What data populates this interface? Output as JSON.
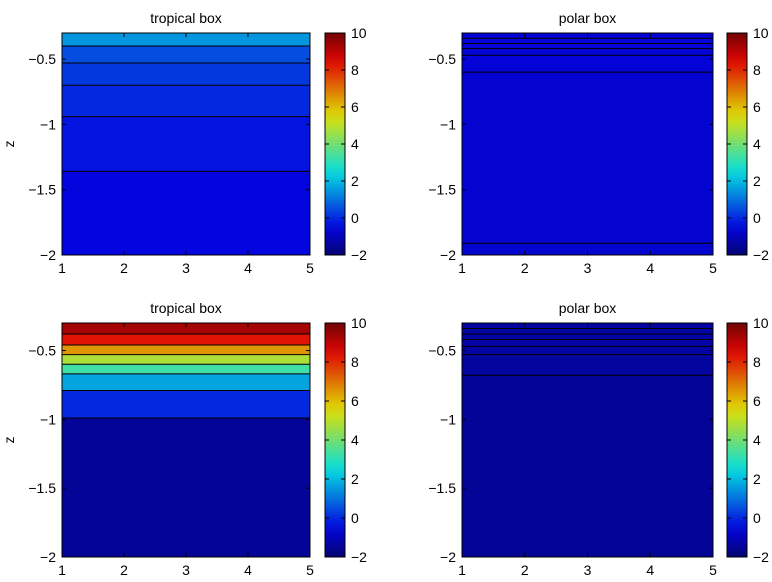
{
  "colormap": {
    "name": "jet",
    "range": [
      -2,
      10
    ],
    "stops": [
      "#000080",
      "#0000ff",
      "#00ffff",
      "#ffff00",
      "#ff0000",
      "#800000"
    ]
  },
  "chart_data": [
    {
      "type": "heatmap",
      "title": "tropical box",
      "xlabel": "",
      "ylabel": "z",
      "xlim": [
        1,
        5
      ],
      "ylim": [
        -2,
        -0.3
      ],
      "x_ticks": [
        1,
        2,
        3,
        4,
        5
      ],
      "y_ticks": [
        -2,
        -1.5,
        -1,
        -0.5
      ],
      "colorbar": {
        "range": [
          -2,
          10
        ],
        "ticks": [
          -2,
          0,
          2,
          4,
          6,
          8,
          10
        ]
      },
      "layers": [
        {
          "z_top": -0.3,
          "z_bottom": -0.4,
          "value": 1.5
        },
        {
          "z_top": -0.4,
          "z_bottom": -0.53,
          "value": 0.5
        },
        {
          "z_top": -0.53,
          "z_bottom": -0.7,
          "value": 0.2
        },
        {
          "z_top": -0.7,
          "z_bottom": -0.94,
          "value": 0.0
        },
        {
          "z_top": -0.94,
          "z_bottom": -1.36,
          "value": -0.3
        },
        {
          "z_top": -1.36,
          "z_bottom": -2.0,
          "value": -0.5
        }
      ]
    },
    {
      "type": "heatmap",
      "title": "polar box",
      "xlabel": "",
      "ylabel": "",
      "xlim": [
        1,
        5
      ],
      "ylim": [
        -2,
        -0.3
      ],
      "x_ticks": [
        1,
        2,
        3,
        4,
        5
      ],
      "y_ticks": [
        -2,
        -1.5,
        -1,
        -0.5
      ],
      "colorbar": {
        "range": [
          -2,
          10
        ],
        "ticks": [
          -2,
          0,
          2,
          4,
          6,
          8,
          10
        ]
      },
      "layers": [
        {
          "z_top": -0.3,
          "z_bottom": -0.34,
          "value": -0.6
        },
        {
          "z_top": -0.34,
          "z_bottom": -0.38,
          "value": -0.6
        },
        {
          "z_top": -0.38,
          "z_bottom": -0.42,
          "value": -0.6
        },
        {
          "z_top": -0.42,
          "z_bottom": -0.47,
          "value": -0.6
        },
        {
          "z_top": -0.47,
          "z_bottom": -0.6,
          "value": -0.6
        },
        {
          "z_top": -0.6,
          "z_bottom": -1.91,
          "value": -0.7
        },
        {
          "z_top": -1.91,
          "z_bottom": -2.0,
          "value": -0.7
        }
      ]
    },
    {
      "type": "heatmap",
      "title": "tropical box",
      "xlabel": "",
      "ylabel": "z",
      "xlim": [
        1,
        5
      ],
      "ylim": [
        -2,
        -0.3
      ],
      "x_ticks": [
        1,
        2,
        3,
        4,
        5
      ],
      "y_ticks": [
        -2,
        -1.5,
        -1,
        -0.5
      ],
      "colorbar": {
        "range": [
          -2,
          10
        ],
        "ticks": [
          -2,
          0,
          2,
          4,
          6,
          8,
          10
        ]
      },
      "layers": [
        {
          "z_top": -0.3,
          "z_bottom": -0.38,
          "value": 9.3
        },
        {
          "z_top": -0.38,
          "z_bottom": -0.46,
          "value": 8.3
        },
        {
          "z_top": -0.46,
          "z_bottom": -0.53,
          "value": 6.5
        },
        {
          "z_top": -0.53,
          "z_bottom": -0.6,
          "value": 4.8
        },
        {
          "z_top": -0.6,
          "z_bottom": -0.67,
          "value": 3.3
        },
        {
          "z_top": -0.67,
          "z_bottom": -0.79,
          "value": 1.7
        },
        {
          "z_top": -0.79,
          "z_bottom": -0.99,
          "value": 0.0
        },
        {
          "z_top": -0.99,
          "z_bottom": -2.0,
          "value": -1.5
        }
      ]
    },
    {
      "type": "heatmap",
      "title": "polar box",
      "xlabel": "",
      "ylabel": "",
      "xlim": [
        1,
        5
      ],
      "ylim": [
        -2,
        -0.3
      ],
      "x_ticks": [
        1,
        2,
        3,
        4,
        5
      ],
      "y_ticks": [
        -2,
        -1.5,
        -1,
        -0.5
      ],
      "colorbar": {
        "range": [
          -2,
          10
        ],
        "ticks": [
          -2,
          0,
          2,
          4,
          6,
          8,
          10
        ]
      },
      "layers": [
        {
          "z_top": -0.3,
          "z_bottom": -0.34,
          "value": -1.3
        },
        {
          "z_top": -0.34,
          "z_bottom": -0.38,
          "value": -1.3
        },
        {
          "z_top": -0.38,
          "z_bottom": -0.42,
          "value": -1.3
        },
        {
          "z_top": -0.42,
          "z_bottom": -0.47,
          "value": -1.3
        },
        {
          "z_top": -0.47,
          "z_bottom": -0.53,
          "value": -1.3
        },
        {
          "z_top": -0.53,
          "z_bottom": -0.68,
          "value": -1.4
        },
        {
          "z_top": -0.68,
          "z_bottom": -2.0,
          "value": -1.5
        }
      ]
    }
  ]
}
